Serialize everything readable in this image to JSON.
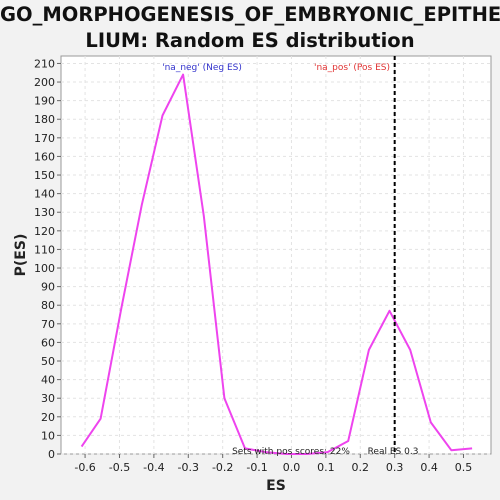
{
  "title_lines": [
    "GO_MORPHOGENESIS_OF_EMBRYONIC_EPITHE",
    "LIUM: Random ES distribution"
  ],
  "chart_data": {
    "type": "line",
    "title": "GO_MORPHOGENESIS_OF_EMBRYONIC_EPITHELIUM: Random ES distribution",
    "xlabel": "ES",
    "ylabel": "P(ES)",
    "xlim": [
      -0.67,
      0.58
    ],
    "ylim": [
      0,
      214
    ],
    "xticks": [
      -0.6,
      -0.5,
      -0.4,
      -0.3,
      -0.2,
      -0.1,
      0.0,
      0.1,
      0.2,
      0.3,
      0.4,
      0.5
    ],
    "xtick_labels": [
      "-0.6",
      "-0.5",
      "-0.4",
      "-0.3",
      "-0.2",
      "-0.1",
      "0.0",
      "0.1",
      "0.2",
      "0.3",
      "0.4",
      "0.5"
    ],
    "yticks": [
      0,
      10,
      20,
      30,
      40,
      50,
      60,
      70,
      80,
      90,
      100,
      110,
      120,
      130,
      140,
      150,
      160,
      170,
      180,
      190,
      200,
      210
    ],
    "grid": true,
    "series": [
      {
        "color": "#ee44ee",
        "x": [
          -0.61,
          -0.555,
          -0.495,
          -0.435,
          -0.375,
          -0.315,
          -0.255,
          -0.195,
          -0.135,
          -0.075,
          -0.015,
          0.045,
          0.105,
          0.165,
          0.225,
          0.285,
          0.345,
          0.405,
          0.465,
          0.525
        ],
        "y": [
          4,
          19,
          78,
          134,
          182,
          204,
          128,
          30,
          3,
          1,
          0,
          0,
          1,
          7,
          56,
          77,
          56,
          17,
          2,
          3
        ]
      }
    ],
    "real_es": 0.3,
    "real_es_color": "#000000",
    "annotations": {
      "neg": {
        "text": "'na_neg' (Neg ES)",
        "color": "#3333cc"
      },
      "pos": {
        "text": "'na_pos' (Pos ES)",
        "color": "#e03333"
      },
      "sets_pos": {
        "text": "Sets with pos scores: 22%",
        "color": "#222222"
      },
      "real_es": {
        "text": "Real ES 0.3",
        "color": "#222222"
      }
    }
  }
}
